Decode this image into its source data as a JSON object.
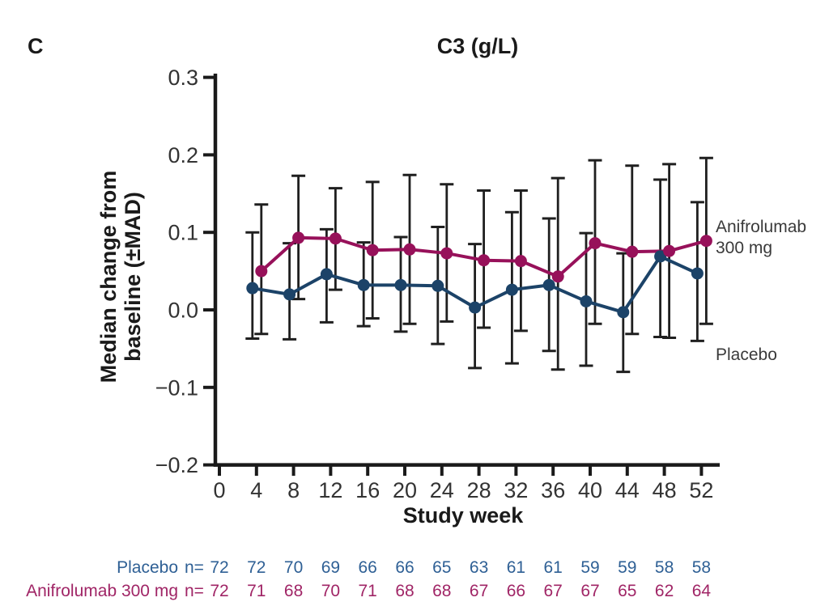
{
  "panel_label": "C",
  "title": "C3 (g/L)",
  "axes": {
    "x_label": "Study week",
    "y_label_line1": "Median change from",
    "y_label_line2": "baseline (±MAD)",
    "y_ticks": [
      0.3,
      0.2,
      0.1,
      0.0,
      -0.1,
      -0.2
    ],
    "y_tick_labels": [
      "0.3",
      "0.2",
      "0.1",
      "0.0",
      "-0.1",
      "-0.2"
    ],
    "x_ticks": [
      0,
      4,
      8,
      12,
      16,
      20,
      24,
      28,
      32,
      36,
      40,
      44,
      48,
      52
    ],
    "y_range": [
      -0.2,
      0.3
    ]
  },
  "legend": {
    "anifrolumab_line1": "Anifrolumab",
    "anifrolumab_line2": "300 mg",
    "placebo": "Placebo"
  },
  "colors": {
    "placebo_series": "#1c4368",
    "anifrolumab_series": "#97115a",
    "error_bar": "#1f1f1f",
    "axis": "#1a1a1a",
    "tick_label": "#333333",
    "legend_text": "#3a3a3a",
    "placebo_row_text": "#2f6095",
    "anifrolumab_row_text": "#a02566",
    "background": "#ffffff"
  },
  "chart_data": {
    "type": "line",
    "title": "C3 (g/L)",
    "xlabel": "Study week",
    "ylabel": "Median change from baseline (±MAD)",
    "x": [
      4,
      8,
      12,
      16,
      20,
      24,
      28,
      32,
      36,
      40,
      44,
      48,
      52
    ],
    "ylim": [
      -0.2,
      0.3
    ],
    "xlim": [
      0,
      54
    ],
    "grid": false,
    "legend_position": "right-of-last-points",
    "error_bars": "±MAD whiskers with caps",
    "series": [
      {
        "name": "Placebo",
        "color": "#1c4368",
        "marker": "circle",
        "values": [
          0.028,
          0.02,
          0.046,
          0.032,
          0.032,
          0.031,
          0.003,
          0.026,
          0.032,
          0.011,
          -0.003,
          0.069,
          0.047
        ],
        "mad_upper": [
          0.1,
          0.086,
          0.104,
          0.087,
          0.094,
          0.107,
          0.085,
          0.126,
          0.118,
          0.099,
          0.073,
          0.168,
          0.139
        ],
        "mad_lower": [
          -0.037,
          -0.038,
          -0.016,
          -0.021,
          -0.028,
          -0.044,
          -0.075,
          -0.069,
          -0.053,
          -0.072,
          -0.08,
          -0.035,
          -0.04
        ]
      },
      {
        "name": "Anifrolumab 300 mg",
        "color": "#97115a",
        "marker": "circle",
        "values": [
          0.05,
          0.093,
          0.092,
          0.077,
          0.078,
          0.073,
          0.064,
          0.063,
          0.043,
          0.086,
          0.075,
          0.076,
          0.089
        ],
        "mad_upper": [
          0.136,
          0.173,
          0.157,
          0.165,
          0.174,
          0.162,
          0.154,
          0.154,
          0.17,
          0.193,
          0.186,
          0.188,
          0.196
        ],
        "mad_lower": [
          -0.031,
          0.014,
          0.026,
          -0.011,
          -0.018,
          -0.015,
          -0.023,
          -0.027,
          -0.077,
          -0.018,
          -0.031,
          -0.036,
          -0.018
        ]
      }
    ]
  },
  "n_table": {
    "weeks": [
      0,
      4,
      8,
      12,
      16,
      20,
      24,
      28,
      32,
      36,
      40,
      44,
      48,
      52
    ],
    "rows": [
      {
        "label": "Placebo",
        "n_prefix": "n=",
        "color": "#2f6095",
        "values": [
          72,
          72,
          70,
          69,
          66,
          66,
          65,
          63,
          61,
          61,
          59,
          59,
          58,
          58
        ]
      },
      {
        "label": "Anifrolumab 300 mg",
        "n_prefix": "n=",
        "color": "#a02566",
        "values": [
          72,
          71,
          68,
          70,
          71,
          68,
          68,
          67,
          66,
          67,
          67,
          65,
          62,
          64
        ]
      }
    ]
  }
}
